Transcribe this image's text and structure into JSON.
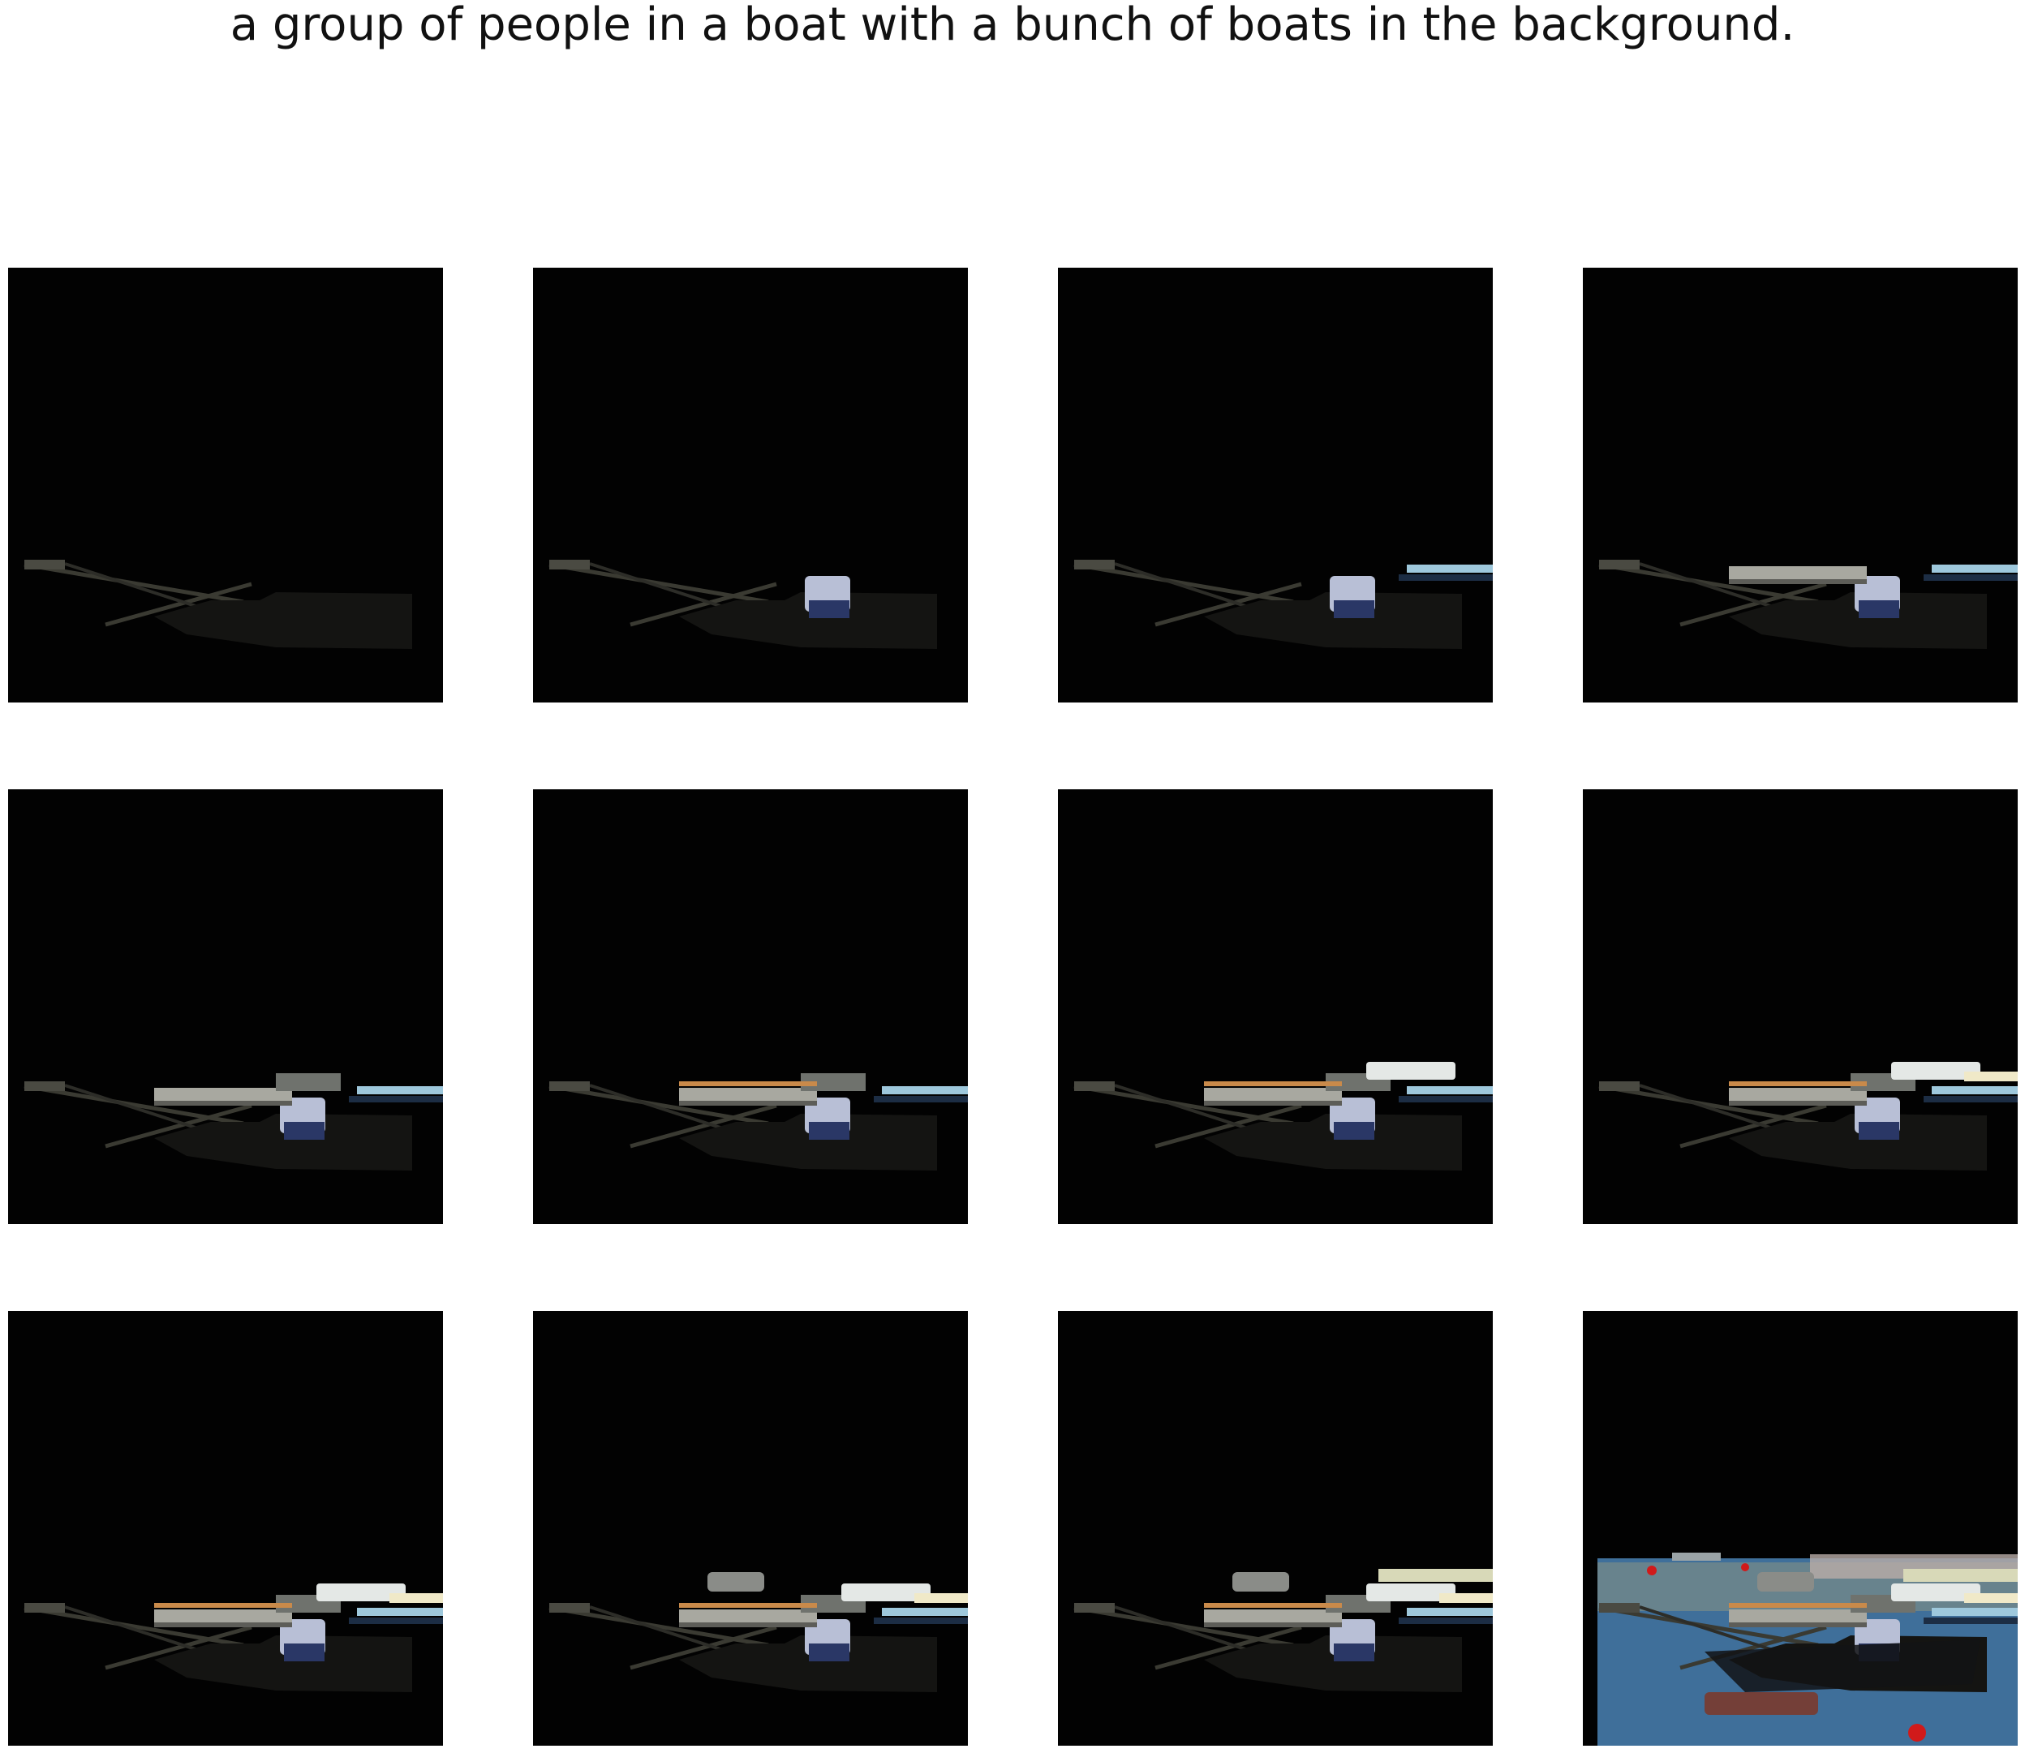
{
  "caption": "a group of people in a boat with a bunch of boats in the background.",
  "colors": {
    "panel_background": "#020202",
    "page_background": "#ffffff",
    "water": "#3f6f9a",
    "buoy": "#d11a1a"
  },
  "panels": [
    {
      "step": 1,
      "layers": [
        "oars",
        "dark-hull"
      ]
    },
    {
      "step": 2,
      "layers": [
        "oars",
        "dark-hull",
        "person"
      ]
    },
    {
      "step": 3,
      "layers": [
        "oars",
        "dark-hull",
        "person",
        "blue-boat"
      ]
    },
    {
      "step": 4,
      "layers": [
        "oars",
        "dark-hull",
        "person",
        "blue-boat",
        "grey-boat"
      ]
    },
    {
      "step": 5,
      "layers": [
        "oars",
        "dark-hull",
        "person",
        "blue-boat",
        "grey-boat",
        "cabin"
      ]
    },
    {
      "step": 6,
      "layers": [
        "oars",
        "dark-hull",
        "person",
        "blue-boat",
        "grey-boat",
        "cabin",
        "striped-hull"
      ]
    },
    {
      "step": 7,
      "layers": [
        "oars",
        "dark-hull",
        "person",
        "blue-boat",
        "grey-boat",
        "cabin",
        "striped-hull",
        "white-boat"
      ]
    },
    {
      "step": 8,
      "layers": [
        "oars",
        "dark-hull",
        "person",
        "blue-boat",
        "grey-boat",
        "cabin",
        "striped-hull",
        "white-boat",
        "yellow-boat"
      ]
    },
    {
      "step": 9,
      "layers": [
        "oars",
        "dark-hull",
        "person",
        "blue-boat",
        "grey-boat",
        "cabin",
        "striped-hull",
        "white-boat",
        "yellow-boat"
      ]
    },
    {
      "step": 10,
      "layers": [
        "oars",
        "dark-hull",
        "person",
        "blue-boat",
        "grey-boat",
        "cabin",
        "striped-hull",
        "white-boat",
        "yellow-boat",
        "small-boat"
      ]
    },
    {
      "step": 11,
      "layers": [
        "oars",
        "dark-hull",
        "person",
        "blue-boat",
        "grey-boat",
        "cabin",
        "striped-hull",
        "white-boat",
        "yellow-boat",
        "small-boat",
        "dock"
      ]
    },
    {
      "step": 12,
      "layers": [
        "water",
        "buildings",
        "oars",
        "dark-hull",
        "person",
        "blue-boat",
        "grey-boat",
        "cabin",
        "striped-hull",
        "white-boat",
        "yellow-boat",
        "small-boat",
        "dock",
        "reflection",
        "buoys"
      ]
    }
  ]
}
